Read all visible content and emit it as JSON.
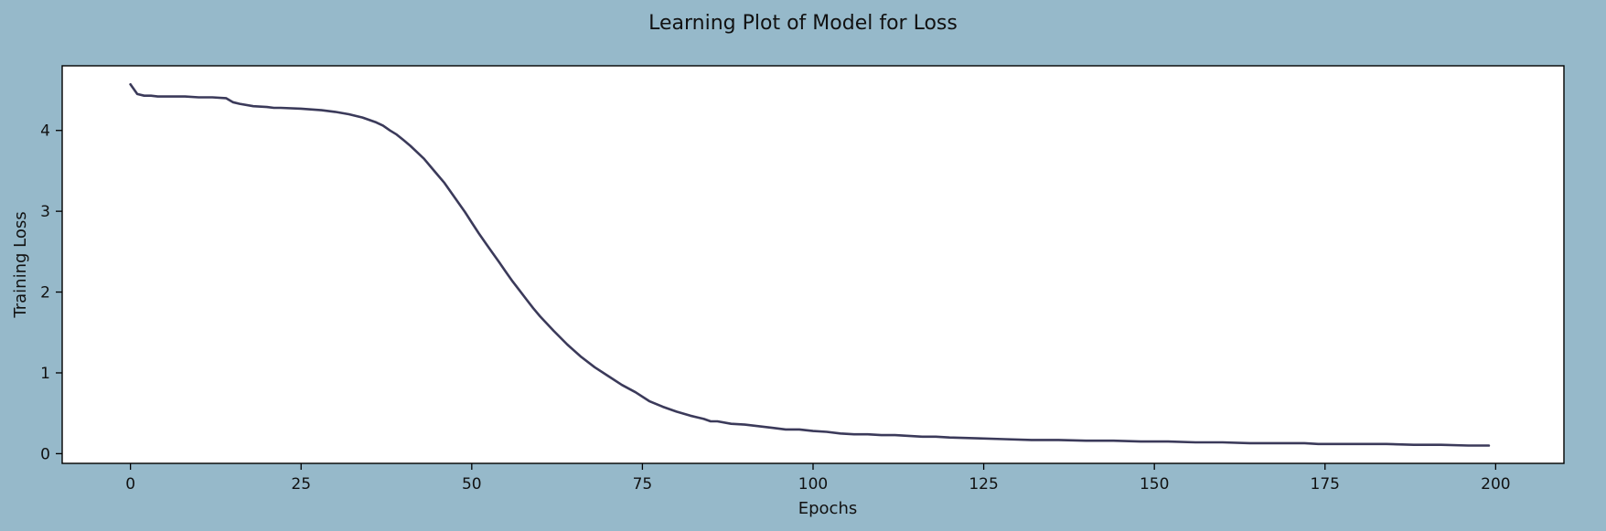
{
  "chart_data": {
    "type": "line",
    "title": "Learning Plot of Model for Loss",
    "xlabel": "Epochs",
    "ylabel": "Training Loss",
    "xlim": [
      -10,
      210
    ],
    "ylim": [
      -0.12,
      4.8
    ],
    "xticks": [
      0,
      25,
      50,
      75,
      100,
      125,
      150,
      175,
      200
    ],
    "yticks": [
      0,
      1,
      2,
      3,
      4
    ],
    "grid": false,
    "colors": {
      "figure_bg": "#96b9ca",
      "plot_bg": "#ffffff",
      "line": "#3b3a5a"
    },
    "series": [
      {
        "x": [
          0,
          1,
          2,
          3,
          4,
          5,
          6,
          8,
          10,
          12,
          14,
          15,
          16,
          18,
          20,
          21,
          22,
          25,
          28,
          30,
          32,
          34,
          36,
          37,
          38,
          39,
          40,
          41,
          42,
          43,
          44,
          45,
          46,
          47,
          48,
          49,
          50,
          51,
          52,
          53,
          54,
          55,
          56,
          57,
          58,
          59,
          60,
          62,
          64,
          66,
          68,
          70,
          72,
          74,
          76,
          78,
          80,
          82,
          84,
          85,
          86,
          88,
          90,
          92,
          94,
          96,
          98,
          100,
          102,
          104,
          106,
          108,
          110,
          112,
          114,
          116,
          118,
          120,
          124,
          128,
          132,
          136,
          140,
          144,
          148,
          152,
          156,
          160,
          164,
          168,
          172,
          174,
          176,
          180,
          184,
          188,
          192,
          196,
          199
        ],
        "y": [
          4.57,
          4.45,
          4.43,
          4.43,
          4.42,
          4.42,
          4.42,
          4.42,
          4.41,
          4.41,
          4.4,
          4.35,
          4.33,
          4.3,
          4.29,
          4.28,
          4.28,
          4.27,
          4.25,
          4.23,
          4.2,
          4.16,
          4.1,
          4.06,
          4.0,
          3.95,
          3.88,
          3.81,
          3.73,
          3.65,
          3.55,
          3.45,
          3.35,
          3.23,
          3.11,
          2.99,
          2.86,
          2.73,
          2.61,
          2.49,
          2.37,
          2.25,
          2.13,
          2.02,
          1.91,
          1.8,
          1.7,
          1.52,
          1.35,
          1.2,
          1.07,
          0.96,
          0.85,
          0.76,
          0.65,
          0.58,
          0.52,
          0.47,
          0.43,
          0.4,
          0.4,
          0.37,
          0.36,
          0.34,
          0.32,
          0.3,
          0.3,
          0.28,
          0.27,
          0.25,
          0.24,
          0.24,
          0.23,
          0.23,
          0.22,
          0.21,
          0.21,
          0.2,
          0.19,
          0.18,
          0.17,
          0.17,
          0.16,
          0.16,
          0.15,
          0.15,
          0.14,
          0.14,
          0.13,
          0.13,
          0.13,
          0.12,
          0.12,
          0.12,
          0.12,
          0.11,
          0.11,
          0.1,
          0.1
        ]
      }
    ]
  }
}
